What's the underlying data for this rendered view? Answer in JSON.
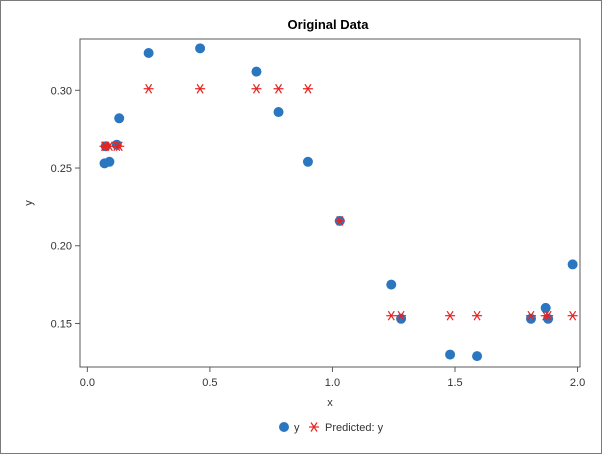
{
  "chart_data": {
    "type": "scatter",
    "title": "Original Data",
    "xlabel": "x",
    "ylabel": "y",
    "xlim": [
      -0.03,
      2.01
    ],
    "ylim": [
      0.122,
      0.333
    ],
    "x_ticks": [
      "0.0",
      "0.5",
      "1.0",
      "1.5",
      "2.0"
    ],
    "x_tick_values": [
      0,
      0.5,
      1.0,
      1.5,
      2.0
    ],
    "y_ticks": [
      "0.15",
      "0.20",
      "0.25",
      "0.30"
    ],
    "y_tick_values": [
      0.15,
      0.2,
      0.25,
      0.3
    ],
    "grid": false,
    "legend_position": "bottom",
    "series": [
      {
        "name": "y",
        "marker": "circle",
        "color": "#2a77c0",
        "points": [
          [
            0.07,
            0.253
          ],
          [
            0.075,
            0.264
          ],
          [
            0.09,
            0.254
          ],
          [
            0.12,
            0.265
          ],
          [
            0.13,
            0.282
          ],
          [
            0.25,
            0.324
          ],
          [
            0.46,
            0.327
          ],
          [
            0.69,
            0.312
          ],
          [
            0.78,
            0.286
          ],
          [
            0.9,
            0.254
          ],
          [
            1.03,
            0.216
          ],
          [
            1.24,
            0.175
          ],
          [
            1.28,
            0.153
          ],
          [
            1.48,
            0.13
          ],
          [
            1.59,
            0.129
          ],
          [
            1.81,
            0.153
          ],
          [
            1.87,
            0.16
          ],
          [
            1.88,
            0.153
          ],
          [
            1.98,
            0.188
          ]
        ]
      },
      {
        "name": "Predicted: y",
        "marker": "asterisk",
        "color": "#e8231f",
        "points": [
          [
            0.07,
            0.264
          ],
          [
            0.075,
            0.264
          ],
          [
            0.09,
            0.264
          ],
          [
            0.12,
            0.264
          ],
          [
            0.13,
            0.264
          ],
          [
            0.25,
            0.301
          ],
          [
            0.46,
            0.301
          ],
          [
            0.69,
            0.301
          ],
          [
            0.78,
            0.301
          ],
          [
            0.9,
            0.301
          ],
          [
            1.03,
            0.216
          ],
          [
            1.24,
            0.155
          ],
          [
            1.28,
            0.155
          ],
          [
            1.48,
            0.155
          ],
          [
            1.59,
            0.155
          ],
          [
            1.81,
            0.155
          ],
          [
            1.87,
            0.155
          ],
          [
            1.88,
            0.155
          ],
          [
            1.98,
            0.155
          ]
        ]
      }
    ]
  }
}
